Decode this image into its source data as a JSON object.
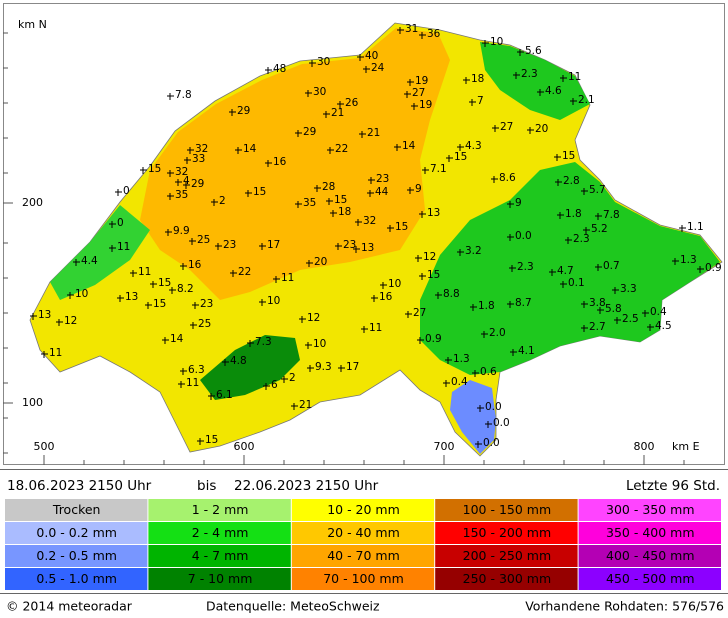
{
  "map": {
    "axis_labels": {
      "north": "km N",
      "east": "km E",
      "y_ticks": [
        "200",
        "100"
      ],
      "x_ticks": [
        "500",
        "600",
        "700",
        "800"
      ]
    },
    "stations": [
      "31",
      "36",
      "10",
      "5.6",
      "40",
      "24",
      "30",
      "48",
      "19",
      "18",
      "2.3",
      "11",
      "7.8",
      "30",
      "27",
      "4.6",
      "2.1",
      "26",
      "21",
      "19",
      "7",
      "29",
      "27",
      "20",
      "29",
      "21",
      "32",
      "14",
      "22",
      "14",
      "4.3",
      "33",
      "16",
      "15",
      "15",
      "15",
      "32",
      "4",
      "29",
      "7.1",
      "23",
      "8.6",
      "2.8",
      "5.7",
      "0",
      "35",
      "15",
      "28",
      "44",
      "9",
      "2",
      "35",
      "15",
      "18",
      "13",
      "9",
      "1.8",
      "7.8",
      "0",
      "32",
      "9.9",
      "15",
      "5.2",
      "0.0",
      "2.3",
      "11",
      "25",
      "23",
      "17",
      "23",
      "13",
      "3.2",
      "1.1",
      "4.4",
      "16",
      "20",
      "12",
      "2.3",
      "4.7",
      "0.7",
      "1.3",
      "0.9",
      "15",
      "11",
      "22",
      "11",
      "0.1",
      "3.3",
      "10",
      "13",
      "15",
      "8.2",
      "15",
      "23",
      "10",
      "10",
      "16",
      "8.8",
      "1.8",
      "8.7",
      "3.8",
      "5.8",
      "2.5",
      "0.4",
      "13",
      "12",
      "25",
      "12",
      "27",
      "2.7",
      "4.5",
      "11",
      "14",
      "7.3",
      "10",
      "0.9",
      "2.0",
      "4.1",
      "11",
      "4.8",
      "9.3",
      "17",
      "1.3",
      "6.3",
      "11",
      "0.6",
      "0.4",
      "6",
      "2",
      "6.1",
      "21",
      "0.0",
      "0.0",
      "15",
      "0.0"
    ]
  },
  "period": {
    "from": "18.06.2023 2150 Uhr",
    "sep": "bis",
    "to": "22.06.2023 2150 Uhr",
    "window": "Letzte 96 Std."
  },
  "legend": {
    "rows": [
      [
        {
          "label": "Trocken",
          "color": "#c8c8c8"
        },
        {
          "label": "1 - 2 mm",
          "color": "#a6f26e"
        },
        {
          "label": "10 - 20 mm",
          "color": "#ffff00"
        },
        {
          "label": "100 - 150 mm",
          "color": "#d27000"
        },
        {
          "label": "300 - 350 mm",
          "color": "#ff44ff"
        }
      ],
      [
        {
          "label": "0.0 - 0.2 mm",
          "color": "#aabcff"
        },
        {
          "label": "2 - 4 mm",
          "color": "#14e014"
        },
        {
          "label": "20 - 40 mm",
          "color": "#ffc800"
        },
        {
          "label": "150 - 200 mm",
          "color": "#ff0000"
        },
        {
          "label": "350 - 400 mm",
          "color": "#ff00dc"
        }
      ],
      [
        {
          "label": "0.2 - 0.5 mm",
          "color": "#7896ff"
        },
        {
          "label": "4 - 7 mm",
          "color": "#00b400"
        },
        {
          "label": "40 - 70 mm",
          "color": "#ffa500"
        },
        {
          "label": "200 - 250 mm",
          "color": "#c80000"
        },
        {
          "label": "400 - 450 mm",
          "color": "#b400b4"
        }
      ],
      [
        {
          "label": "0.5 - 1.0 mm",
          "color": "#3264ff"
        },
        {
          "label": "7 - 10 mm",
          "color": "#008200"
        },
        {
          "label": "70 - 100 mm",
          "color": "#ff8200"
        },
        {
          "label": "250 - 300 mm",
          "color": "#960000"
        },
        {
          "label": "450 - 500 mm",
          "color": "#8c00ff"
        }
      ]
    ]
  },
  "footer": {
    "copyright": "© 2014 meteoradar",
    "source": "Datenquelle: MeteoSchweiz",
    "raw": "Vorhandene Rohdaten: 576/576"
  }
}
